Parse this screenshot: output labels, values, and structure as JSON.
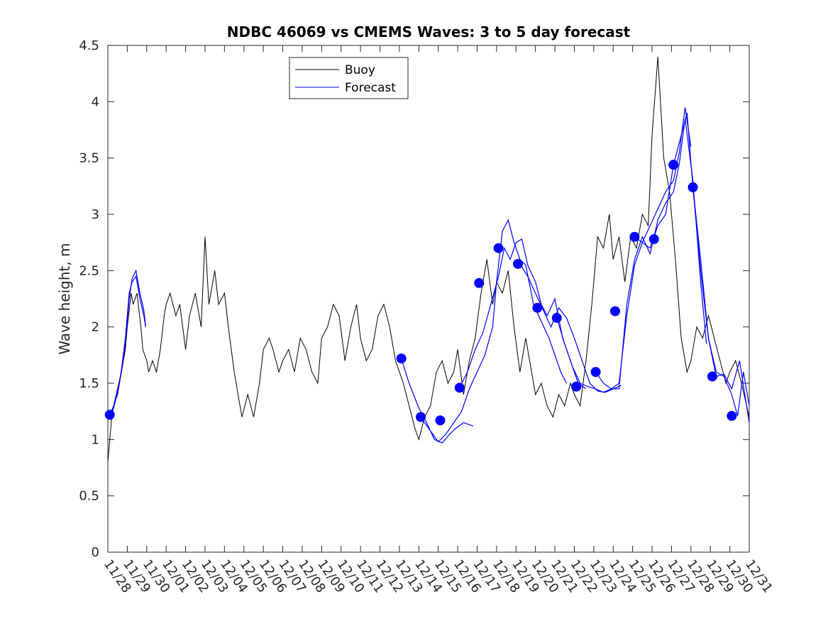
{
  "chart_data": {
    "type": "line",
    "title": "NDBC 46069 vs CMEMS Waves: 3 to 5 day forecast",
    "xlabel": "",
    "ylabel": "Wave height, m",
    "xlim": [
      0,
      33
    ],
    "ylim": [
      0,
      4.5
    ],
    "yticks": [
      0,
      0.5,
      1,
      1.5,
      2,
      2.5,
      3,
      3.5,
      4,
      4.5
    ],
    "ytick_labels": [
      "0",
      "0.5",
      "1",
      "1.5",
      "2",
      "2.5",
      "3",
      "3.5",
      "4",
      "4.5"
    ],
    "xtick_labels": [
      "11/28",
      "11/29",
      "11/30",
      "12/01",
      "12/02",
      "12/03",
      "12/04",
      "12/05",
      "12/06",
      "12/07",
      "12/08",
      "12/09",
      "12/10",
      "12/11",
      "12/12",
      "12/13",
      "12/14",
      "12/15",
      "12/16",
      "12/17",
      "12/18",
      "12/19",
      "12/20",
      "12/21",
      "12/22",
      "12/23",
      "12/24",
      "12/25",
      "12/26",
      "12/27",
      "12/28",
      "12/29",
      "12/30",
      "12/31"
    ],
    "grid": false,
    "legend": {
      "position": "top-center",
      "entries": [
        "Buoy",
        "Forecast"
      ]
    },
    "colors": {
      "buoy": "#000000",
      "forecast": "#0000ff",
      "axes": "#262626"
    },
    "series": [
      {
        "name": "Buoy",
        "x_units": "days since 11/28",
        "x": [
          0,
          0.1,
          0.2,
          0.3,
          0.5,
          0.7,
          0.9,
          1.0,
          1.2,
          1.3,
          1.5,
          1.7,
          1.8,
          2.0,
          2.1,
          2.3,
          2.5,
          2.7,
          2.9,
          3.0,
          3.2,
          3.5,
          3.7,
          4.0,
          4.2,
          4.5,
          4.8,
          5.0,
          5.2,
          5.5,
          5.7,
          6.0,
          6.2,
          6.5,
          6.7,
          6.9,
          7.2,
          7.5,
          7.8,
          8.0,
          8.3,
          8.5,
          8.8,
          9.0,
          9.3,
          9.6,
          9.9,
          10.2,
          10.5,
          10.8,
          11.0,
          11.3,
          11.6,
          11.9,
          12.2,
          12.5,
          12.8,
          13.0,
          13.3,
          13.6,
          13.9,
          14.2,
          14.5,
          14.8,
          15.0,
          15.2,
          15.5,
          15.8,
          16.0,
          16.3,
          16.6,
          16.9,
          17.2,
          17.5,
          17.8,
          18.0,
          18.3,
          18.6,
          18.9,
          19.2,
          19.5,
          19.8,
          20.0,
          20.3,
          20.6,
          20.9,
          21.2,
          21.5,
          21.8,
          22.0,
          22.3,
          22.6,
          22.9,
          23.2,
          23.5,
          23.8,
          24.0,
          24.3,
          24.6,
          24.9,
          25.2,
          25.5,
          25.8,
          26.0,
          26.3,
          26.6,
          26.9,
          27.2,
          27.5,
          27.8,
          28.0,
          28.3,
          28.6,
          28.9,
          29.2,
          29.5,
          29.8,
          30.0,
          30.3,
          30.6,
          30.9,
          31.2,
          31.5,
          31.8,
          32.0,
          32.3,
          32.6,
          33.0
        ],
        "values": [
          0.8,
          1.0,
          1.2,
          1.3,
          1.4,
          1.6,
          1.8,
          2.0,
          2.3,
          2.2,
          2.3,
          2.0,
          1.8,
          1.7,
          1.6,
          1.7,
          1.6,
          1.8,
          2.1,
          2.2,
          2.3,
          2.1,
          2.2,
          1.8,
          2.1,
          2.3,
          2.0,
          2.8,
          2.2,
          2.5,
          2.2,
          2.3,
          2.0,
          1.6,
          1.4,
          1.2,
          1.4,
          1.2,
          1.5,
          1.8,
          1.9,
          1.8,
          1.6,
          1.7,
          1.8,
          1.6,
          1.9,
          1.8,
          1.6,
          1.5,
          1.9,
          2.0,
          2.2,
          2.1,
          1.7,
          2.0,
          2.2,
          1.9,
          1.7,
          1.8,
          2.1,
          2.2,
          2.0,
          1.7,
          1.6,
          1.5,
          1.3,
          1.1,
          1.0,
          1.2,
          1.3,
          1.6,
          1.7,
          1.5,
          1.6,
          1.8,
          1.4,
          1.7,
          1.9,
          2.3,
          2.6,
          2.2,
          2.4,
          2.3,
          2.5,
          2.0,
          1.6,
          1.9,
          1.6,
          1.4,
          1.5,
          1.3,
          1.2,
          1.4,
          1.3,
          1.5,
          1.4,
          1.3,
          1.7,
          2.2,
          2.8,
          2.7,
          3.0,
          2.6,
          2.8,
          2.4,
          2.8,
          2.7,
          3.0,
          2.9,
          3.7,
          4.4,
          3.5,
          3.2,
          2.6,
          1.9,
          1.6,
          1.7,
          2.0,
          1.9,
          2.1,
          1.9,
          1.7,
          1.5,
          1.6,
          1.7,
          1.5,
          1.2
        ]
      },
      {
        "name": "Forecast",
        "segments": [
          {
            "x": [
              0.1,
              0.3,
              0.5,
              0.7,
              0.9,
              1.1,
              1.25,
              1.45,
              1.65,
              1.85,
              1.95
            ],
            "values": [
              1.22,
              1.3,
              1.45,
              1.6,
              1.85,
              2.25,
              2.43,
              2.5,
              2.3,
              2.15,
              2.0
            ]
          },
          {
            "x": [
              0.1,
              0.3,
              0.5,
              0.7,
              0.9,
              1.1,
              1.25,
              1.45,
              1.65,
              1.85,
              1.95
            ],
            "values": [
              1.22,
              1.28,
              1.42,
              1.62,
              1.9,
              2.3,
              2.4,
              2.45,
              2.25,
              2.1,
              2.0
            ]
          },
          {
            "x": [
              15.1,
              15.5,
              16.0,
              16.4,
              16.8,
              17.2,
              17.6,
              17.9,
              18.3,
              18.8
            ],
            "values": [
              1.72,
              1.5,
              1.28,
              1.15,
              1.0,
              0.97,
              1.05,
              1.1,
              1.15,
              1.12
            ]
          },
          {
            "x": [
              16.1,
              16.5,
              17.0,
              17.4,
              17.8,
              18.2,
              18.6,
              19.0,
              19.4,
              19.8,
              20.0,
              20.3,
              20.6,
              20.9,
              21.2,
              21.5,
              21.9,
              22.3,
              22.7,
              23.0,
              23.3,
              23.6
            ],
            "values": [
              1.2,
              1.1,
              0.98,
              1.05,
              1.15,
              1.25,
              1.45,
              1.6,
              1.75,
              2.0,
              2.4,
              2.85,
              2.95,
              2.75,
              2.6,
              2.55,
              2.2,
              2.05,
              1.9,
              1.75,
              1.6,
              1.5
            ]
          },
          {
            "x": [
              18.1,
              18.5,
              18.9,
              19.3,
              19.7,
              20.1,
              20.4,
              20.7,
              21.0,
              21.3,
              21.6,
              22.0,
              22.3,
              22.6,
              23.0,
              23.4,
              23.8,
              24.2,
              24.6
            ],
            "values": [
              1.46,
              1.6,
              1.8,
              1.95,
              2.2,
              2.45,
              2.7,
              2.6,
              2.75,
              2.78,
              2.55,
              2.4,
              2.2,
              2.1,
              2.25,
              1.9,
              1.7,
              1.5,
              1.45
            ]
          },
          {
            "x": [
              21.2,
              21.6,
              22.0,
              22.4,
              22.8,
              23.2,
              23.6,
              24.0,
              24.4,
              24.8,
              25.2,
              25.6,
              26.0,
              26.4
            ],
            "values": [
              2.56,
              2.45,
              2.3,
              2.15,
              2.0,
              2.17,
              2.08,
              1.9,
              1.7,
              1.5,
              1.43,
              1.42,
              1.45,
              1.48
            ]
          },
          {
            "x": [
              23.1,
              23.5,
              23.9,
              24.3,
              24.7,
              25.1,
              25.5,
              25.9,
              26.3,
              26.7,
              27.1,
              27.5,
              27.9,
              28.3,
              28.7,
              29.1,
              29.4,
              29.7,
              30.0
            ],
            "values": [
              2.08,
              1.85,
              1.65,
              1.5,
              1.47,
              1.45,
              1.42,
              1.45,
              1.5,
              2.1,
              2.55,
              2.75,
              2.9,
              3.05,
              3.2,
              3.3,
              3.55,
              3.95,
              3.6
            ]
          },
          {
            "x": [
              25.1,
              25.5,
              25.9,
              26.3,
              26.7,
              27.1,
              27.5,
              27.9,
              28.3,
              28.7,
              29.1,
              29.4,
              29.7,
              30.1,
              30.5,
              30.8
            ],
            "values": [
              1.6,
              1.5,
              1.45,
              1.45,
              2.2,
              2.6,
              2.8,
              2.65,
              2.95,
              3.1,
              3.2,
              3.45,
              3.85,
              3.3,
              2.4,
              1.85
            ]
          },
          {
            "x": [
              27.1,
              27.5,
              27.9,
              28.3,
              28.7,
              29.1,
              29.5,
              29.8,
              30.1,
              30.5,
              30.9,
              31.3,
              31.7,
              32.1,
              32.5,
              33.0
            ],
            "values": [
              2.8,
              2.75,
              2.7,
              2.9,
              3.0,
              3.44,
              3.7,
              3.9,
              3.24,
              2.6,
              1.9,
              1.56,
              1.58,
              1.45,
              1.7,
              1.15
            ]
          },
          {
            "x": [
              30.1,
              30.5,
              30.9,
              31.3,
              31.7,
              32.1,
              32.4,
              32.7,
              33.0
            ],
            "values": [
              3.24,
              2.5,
              1.9,
              1.6,
              1.56,
              1.4,
              1.21,
              1.6,
              1.3
            ]
          }
        ],
        "markers": {
          "x": [
            0.1,
            15.1,
            16.1,
            17.1,
            18.1,
            19.1,
            20.1,
            21.1,
            22.1,
            23.1,
            24.1,
            25.1,
            26.1,
            27.1,
            28.1,
            29.1,
            30.1,
            31.1,
            32.1
          ],
          "values": [
            1.22,
            1.72,
            1.2,
            1.17,
            1.46,
            2.39,
            2.7,
            2.56,
            2.17,
            2.08,
            1.47,
            1.6,
            2.14,
            2.8,
            2.78,
            3.44,
            3.24,
            1.56,
            1.21
          ]
        }
      }
    ]
  }
}
